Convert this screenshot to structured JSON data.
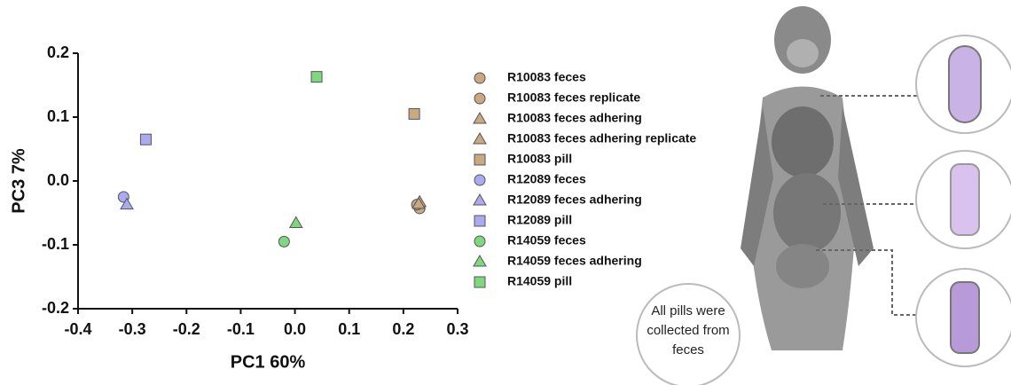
{
  "chart_data": {
    "type": "scatter",
    "xlabel": "PC1  60%",
    "ylabel": "PC3  7%",
    "xlim": [
      -0.4,
      0.3
    ],
    "xticks": [
      -0.4,
      -0.3,
      -0.2,
      -0.1,
      {
        "value": 0,
        "label": "0.0"
      },
      0.1,
      0.2,
      0.3
    ],
    "ylim": [
      -0.2,
      0.2
    ],
    "yticks": [
      -0.2,
      -0.1,
      {
        "value": 0,
        "label": "0.0"
      },
      0.1,
      0.2
    ],
    "grid": false,
    "legend": "right",
    "series": [
      {
        "name": "R10083 feces",
        "color": "#c9a882",
        "marker": "circle",
        "x": [
          0.23
        ],
        "values": [
          -0.043
        ]
      },
      {
        "name": "R10083 feces replicate",
        "color": "#c9a882",
        "marker": "circle",
        "x": [
          0.225
        ],
        "values": [
          -0.037
        ]
      },
      {
        "name": "R10083 feces adhering",
        "color": "#c9a882",
        "marker": "triangle",
        "x": [
          0.23
        ],
        "values": [
          -0.033
        ]
      },
      {
        "name": "R10083 feces adhering replicate",
        "color": "#c9a882",
        "marker": "triangle",
        "x": [
          0.228
        ],
        "values": [
          -0.036
        ]
      },
      {
        "name": "R10083 pill",
        "color": "#c9a882",
        "marker": "square",
        "x": [
          0.22
        ],
        "values": [
          0.105
        ]
      },
      {
        "name": "R12089 feces",
        "color": "#aaaaf0",
        "marker": "circle",
        "x": [
          -0.316
        ],
        "values": [
          -0.025
        ]
      },
      {
        "name": "R12089 feces adhering",
        "color": "#aaaaf0",
        "marker": "triangle",
        "x": [
          -0.31
        ],
        "values": [
          -0.037
        ]
      },
      {
        "name": "R12089 pill",
        "color": "#aaaaf0",
        "marker": "square",
        "x": [
          -0.275
        ],
        "values": [
          0.065
        ]
      },
      {
        "name": "R14059 feces",
        "color": "#7fd87f",
        "marker": "circle",
        "x": [
          -0.02
        ],
        "values": [
          -0.095
        ]
      },
      {
        "name": "R14059 feces adhering",
        "color": "#7fd87f",
        "marker": "triangle",
        "x": [
          0.002
        ],
        "values": [
          -0.066
        ]
      },
      {
        "name": "R14059 pill",
        "color": "#7fd87f",
        "marker": "square",
        "x": [
          0.04
        ],
        "values": [
          0.163
        ]
      }
    ]
  },
  "illustration": {
    "caption": "All pills were collected from feces"
  }
}
